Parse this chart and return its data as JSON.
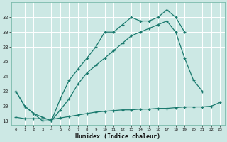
{
  "xlabel": "Humidex (Indice chaleur)",
  "x": [
    0,
    1,
    2,
    3,
    4,
    5,
    6,
    7,
    8,
    9,
    10,
    11,
    12,
    13,
    14,
    15,
    16,
    17,
    18,
    19,
    20,
    21,
    22,
    23
  ],
  "line1": [
    22.0,
    20.0,
    19.0,
    18.0,
    18.0,
    21.0,
    23.5,
    25.0,
    26.5,
    28.0,
    30.0,
    30.0,
    31.0,
    32.0,
    31.5,
    31.5,
    32.0,
    33.0,
    32.0,
    30.0,
    null,
    null,
    null,
    null
  ],
  "line2": [
    22.0,
    20.0,
    19.0,
    18.5,
    18.0,
    19.5,
    21.0,
    23.0,
    24.5,
    25.5,
    26.5,
    27.5,
    28.5,
    29.5,
    30.0,
    30.5,
    31.0,
    31.5,
    30.0,
    26.5,
    23.5,
    22.0,
    null,
    null
  ],
  "line3": [
    18.5,
    18.3,
    18.3,
    18.3,
    18.2,
    18.4,
    18.6,
    18.8,
    19.0,
    19.2,
    19.3,
    19.4,
    19.5,
    19.5,
    19.6,
    19.6,
    19.7,
    19.7,
    19.8,
    19.9,
    19.9,
    19.9,
    20.0,
    20.5
  ],
  "ylim": [
    17.5,
    34
  ],
  "xlim": [
    -0.5,
    23.5
  ],
  "yticks": [
    18,
    20,
    22,
    24,
    26,
    28,
    30,
    32
  ],
  "xticks": [
    0,
    1,
    2,
    3,
    4,
    5,
    6,
    7,
    8,
    9,
    10,
    11,
    12,
    13,
    14,
    15,
    16,
    17,
    18,
    19,
    20,
    21,
    22,
    23
  ],
  "line_color": "#1a7a6e",
  "bg_color": "#cce8e4",
  "grid_color": "#b0d8d4"
}
